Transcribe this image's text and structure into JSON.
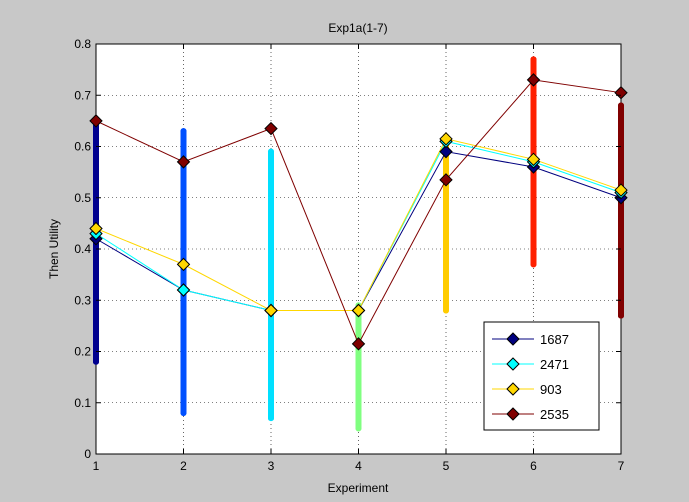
{
  "chart_data": {
    "type": "line",
    "title": "Exp1a(1-7)",
    "xlabel": "Experiment",
    "ylabel": "Then Utility",
    "xlim": [
      1,
      7
    ],
    "ylim": [
      0,
      0.8
    ],
    "xticks": [
      1,
      2,
      3,
      4,
      5,
      6,
      7
    ],
    "yticks": [
      0,
      0.1,
      0.2,
      0.3,
      0.4,
      0.5,
      0.6,
      0.7,
      0.8
    ],
    "grid": true,
    "legend_position": "bottom-right",
    "series": [
      {
        "name": "1687",
        "color": "#00007f",
        "values": [
          0.42,
          0.32,
          0.28,
          0.28,
          0.59,
          0.56,
          0.5
        ]
      },
      {
        "name": "2471",
        "color": "#00ffff",
        "values": [
          0.43,
          0.32,
          0.28,
          0.28,
          0.61,
          0.57,
          0.51
        ]
      },
      {
        "name": "903",
        "color": "#ffd700",
        "values": [
          0.44,
          0.37,
          0.28,
          0.28,
          0.615,
          0.575,
          0.515
        ]
      },
      {
        "name": "2535",
        "color": "#7f0000",
        "values": [
          0.65,
          0.57,
          0.635,
          0.215,
          0.535,
          0.73,
          0.705
        ]
      }
    ],
    "scatter_columns": [
      {
        "x": 1,
        "color": "#00008f",
        "min": 0.18,
        "max": 0.64
      },
      {
        "x": 2,
        "color": "#0050ff",
        "min": 0.08,
        "max": 0.63
      },
      {
        "x": 3,
        "color": "#00e0ff",
        "min": 0.07,
        "max": 0.59
      },
      {
        "x": 4,
        "color": "#80ff80",
        "min": 0.05,
        "max": 0.29
      },
      {
        "x": 5,
        "color": "#ffcc00",
        "min": 0.28,
        "max": 0.62
      },
      {
        "x": 6,
        "color": "#ff2000",
        "min": 0.37,
        "max": 0.77
      },
      {
        "x": 7,
        "color": "#800000",
        "min": 0.27,
        "max": 0.68
      }
    ]
  }
}
